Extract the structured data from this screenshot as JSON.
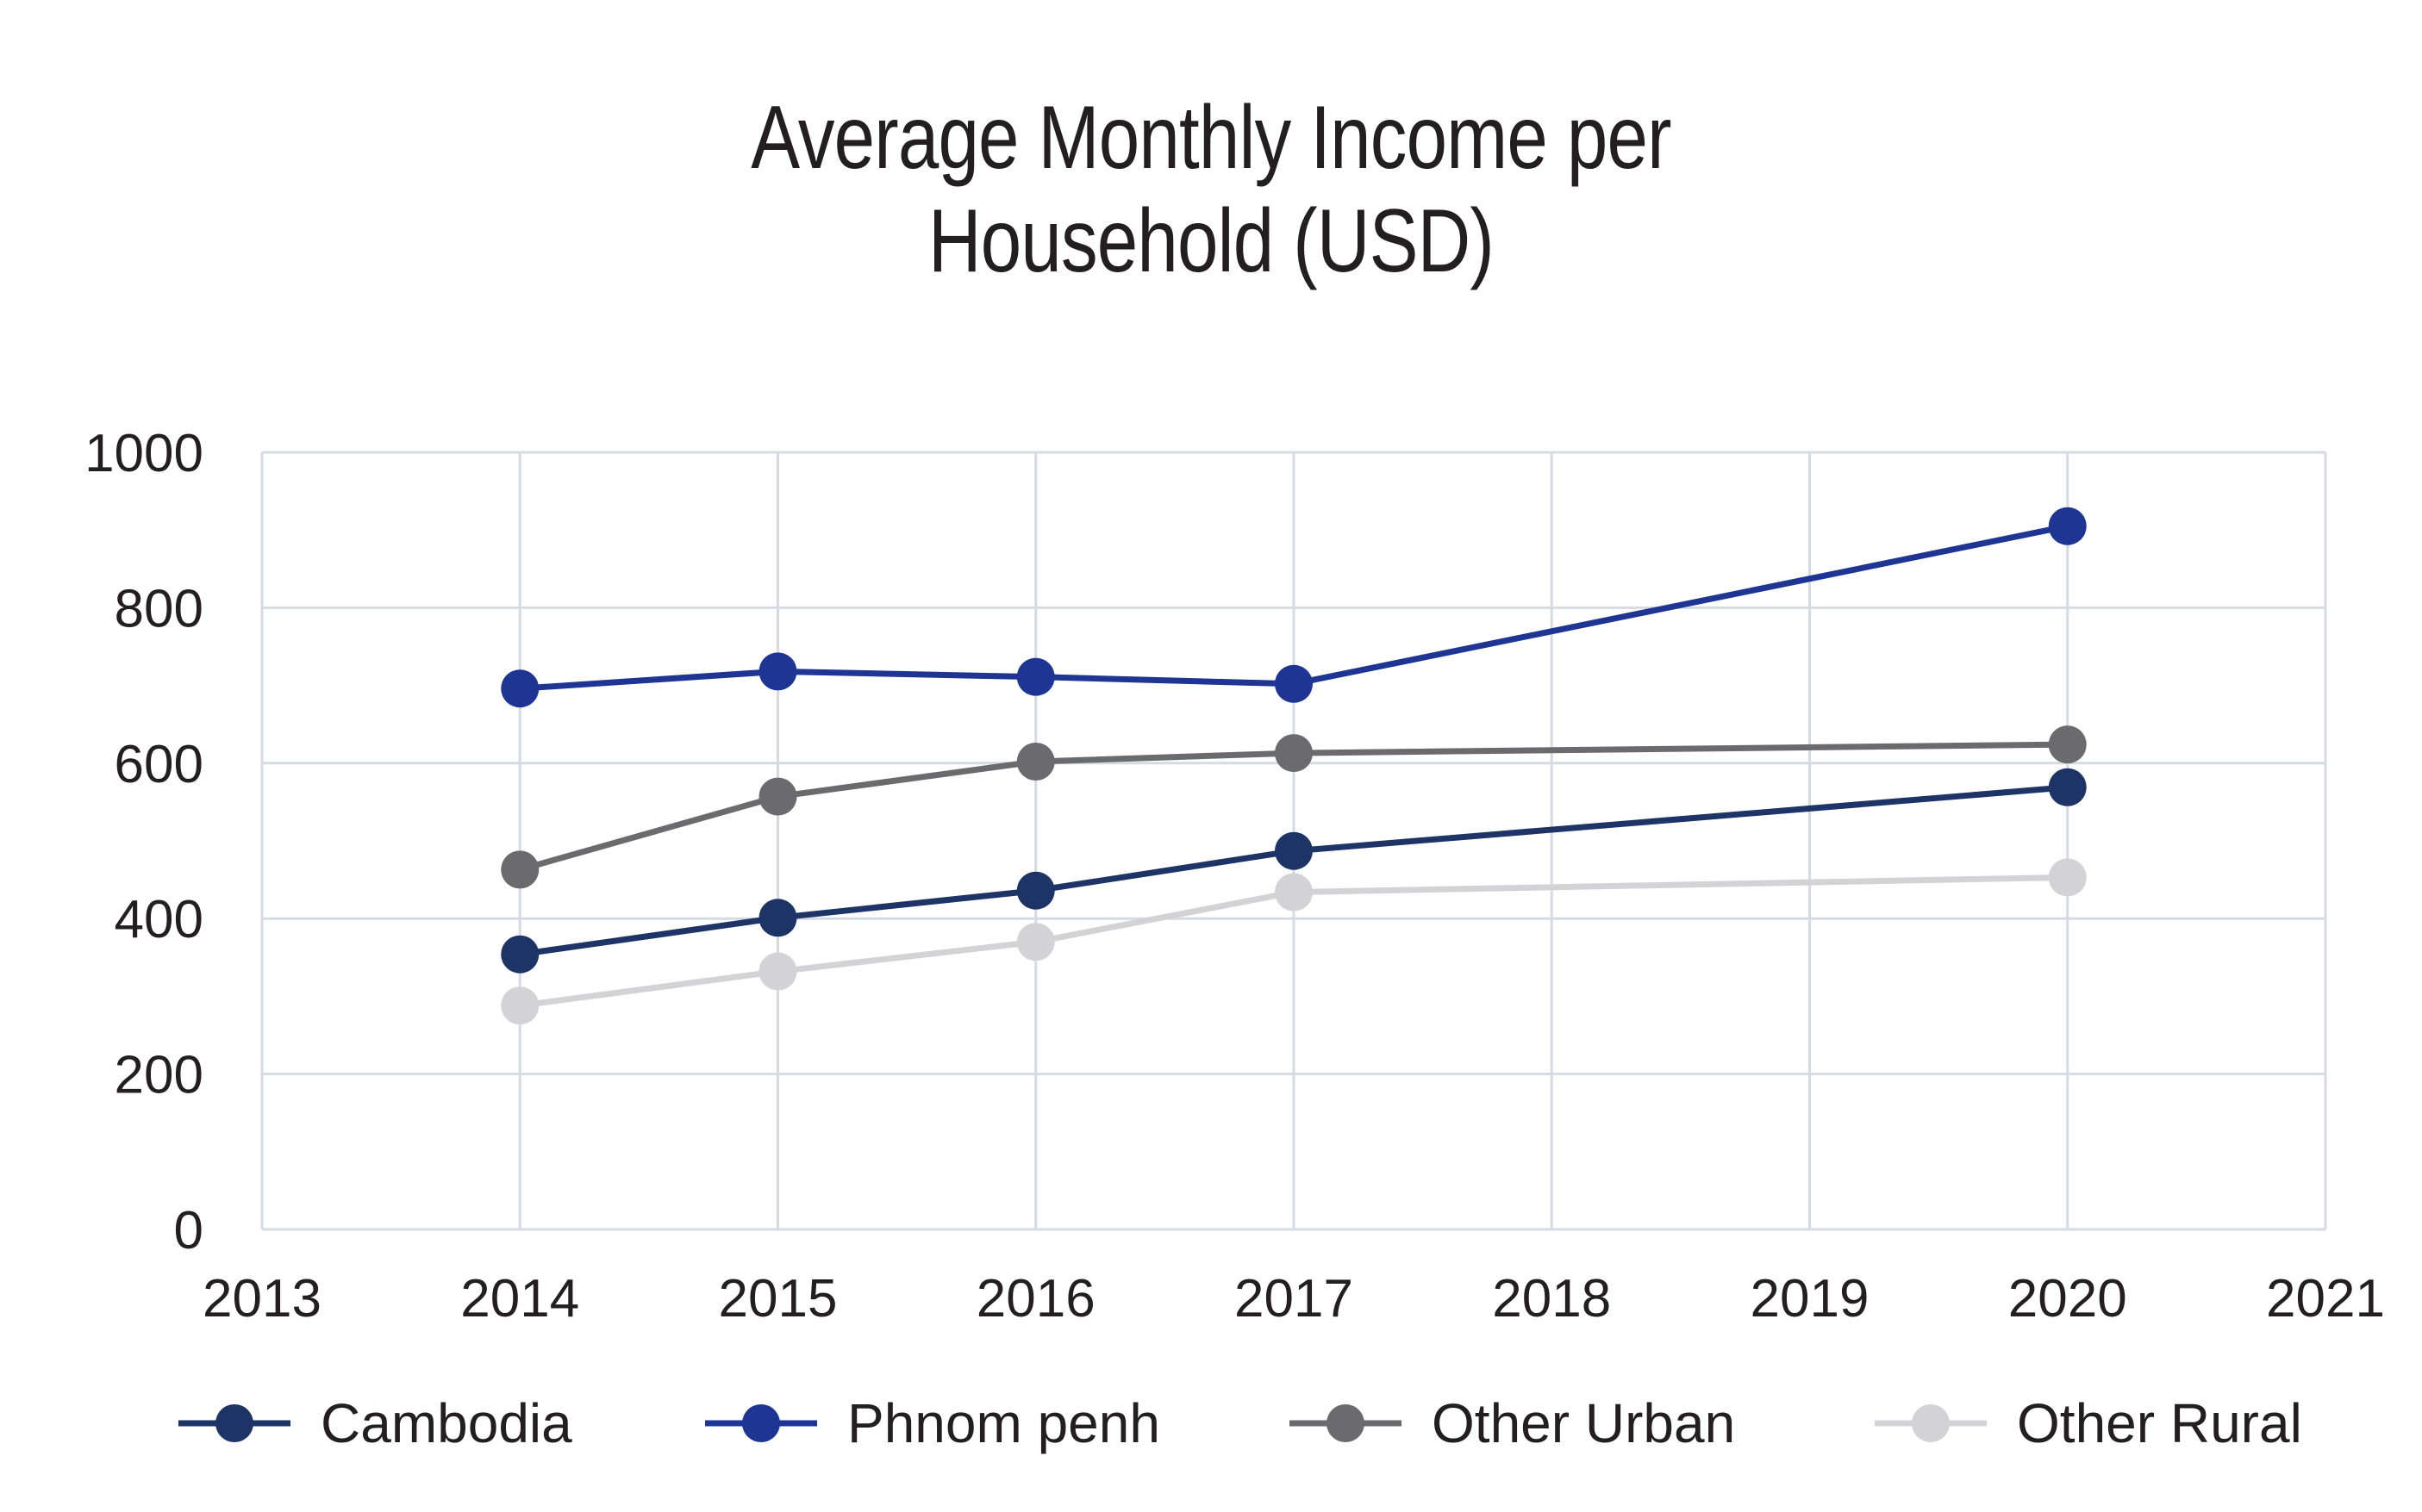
{
  "chart_data": {
    "type": "line",
    "title_line1": "Average Monthly Income per",
    "title_line2": "Household (USD)",
    "xlabel": "",
    "ylabel": "",
    "xlim": [
      2013,
      2021
    ],
    "ylim": [
      0,
      1000
    ],
    "x_ticks": [
      "2013",
      "2014",
      "2015",
      "2016",
      "2017",
      "2018",
      "2019",
      "2020",
      "2021"
    ],
    "y_ticks": [
      "0",
      "200",
      "400",
      "600",
      "800",
      "1000"
    ],
    "grid": true,
    "legend_position": "bottom",
    "x": [
      2014,
      2015,
      2016,
      2017,
      2020
    ],
    "series": [
      {
        "name": "Cambodia",
        "color": "#1f3466",
        "values": [
          354,
          401,
          436,
          487,
          569
        ]
      },
      {
        "name": "Phnom penh",
        "color": "#1e3594",
        "values": [
          696,
          718,
          711,
          702,
          905
        ]
      },
      {
        "name": "Other Urban",
        "color": "#6b6b6d",
        "values": [
          463,
          557,
          602,
          613,
          624
        ]
      },
      {
        "name": "Other Rural",
        "color": "#d3d3d5",
        "values": [
          288,
          332,
          370,
          434,
          453
        ]
      }
    ]
  }
}
